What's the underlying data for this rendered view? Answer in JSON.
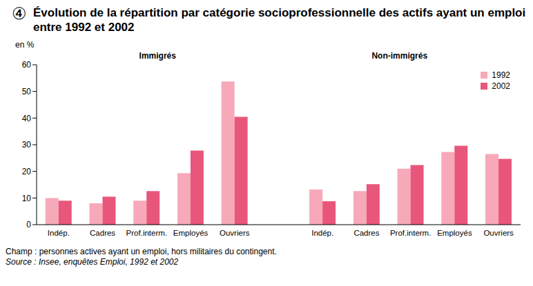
{
  "figure_number": "④",
  "title": "Évolution de la répartition par catégorie socioprofessionnelle des actifs ayant un emploi entre 1992 et 2002",
  "chart_data": {
    "type": "bar",
    "y_label": "en %",
    "annotations": [
      "Immigrés",
      "Non-immigrés"
    ],
    "categories": [
      "Indép.",
      "Cadres",
      "Prof.interm.",
      "Employés",
      "Ouvriers",
      null,
      "Indép.",
      "Cadres",
      "Prof.interm.",
      "Employés",
      "Ouvriers"
    ],
    "series": [
      {
        "name": "1992",
        "color": "#f7a9b9",
        "values": [
          10,
          8,
          9,
          19.3,
          53.7,
          null,
          13.2,
          12.6,
          21,
          27.3,
          26.5
        ]
      },
      {
        "name": "2002",
        "color": "#e8577b",
        "values": [
          9,
          10.5,
          12.6,
          27.8,
          40.5,
          null,
          8.8,
          15.2,
          22.4,
          29.6,
          24.7
        ]
      }
    ],
    "ylim": [
      0,
      60
    ],
    "yticks": [
      0,
      10,
      20,
      30,
      40,
      50,
      60
    ],
    "grid": false,
    "legend": "upper right"
  },
  "notes": [
    "Champ : personnes actives ayant un emploi, hors militaires du contingent.",
    "Source : Insee, enquêtes Emploi, 1992 et 2002"
  ]
}
